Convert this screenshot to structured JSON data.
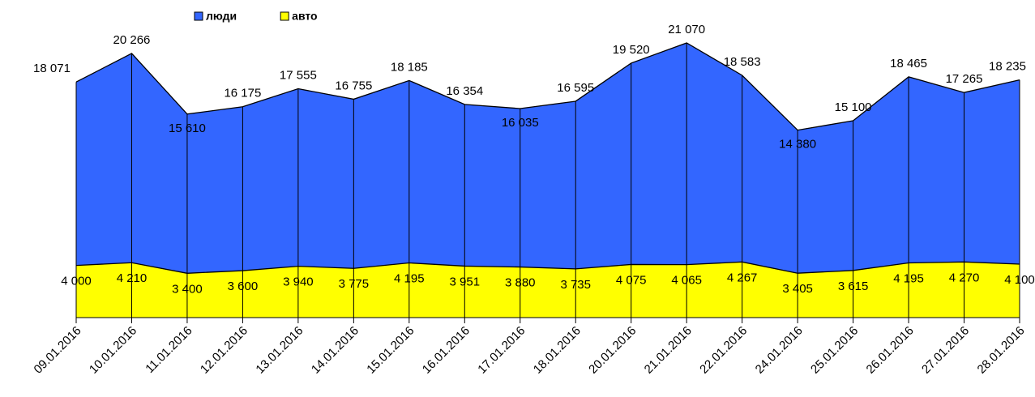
{
  "chart_data": {
    "type": "area",
    "categories": [
      "09.01.2016",
      "10.01.2016",
      "11.01.2016",
      "12.01.2016",
      "13.01.2016",
      "14.01.2016",
      "15.01.2016",
      "16.01.2016",
      "17.01.2016",
      "18.01.2016",
      "20.01.2016",
      "21.01.2016",
      "22.01.2016",
      "24.01.2016",
      "25.01.2016",
      "26.01.2016",
      "27.01.2016",
      "28.01.2016"
    ],
    "series": [
      {
        "name": "люди",
        "color": "#3366ff",
        "values": [
          18071,
          20266,
          15610,
          16175,
          17555,
          16755,
          18185,
          16354,
          16035,
          16595,
          19520,
          21070,
          18583,
          14380,
          15100,
          18465,
          17265,
          18235
        ],
        "value_labels": [
          "18 071",
          "20 266",
          "15 610",
          "16 175",
          "17 555",
          "16 755",
          "18 185",
          "16 354",
          "16 035",
          "16 595",
          "19 520",
          "21 070",
          "18 583",
          "14 380",
          "15 100",
          "18 465",
          "17 265",
          "18 235"
        ]
      },
      {
        "name": "авто",
        "color": "#ffff00",
        "values": [
          4000,
          4210,
          3400,
          3600,
          3940,
          3775,
          4195,
          3951,
          3880,
          3735,
          4075,
          4065,
          4267,
          3405,
          3615,
          4195,
          4270,
          4100
        ],
        "value_labels": [
          "4 000",
          "4 210",
          "3 400",
          "3 600",
          "3 940",
          "3 775",
          "4 195",
          "3 951",
          "3 880",
          "3 735",
          "4 075",
          "4 065",
          "4 267",
          "3 405",
          "3 615",
          "4 195",
          "4 270",
          "4 100"
        ]
      }
    ],
    "ylim": [
      0,
      22000
    ]
  }
}
